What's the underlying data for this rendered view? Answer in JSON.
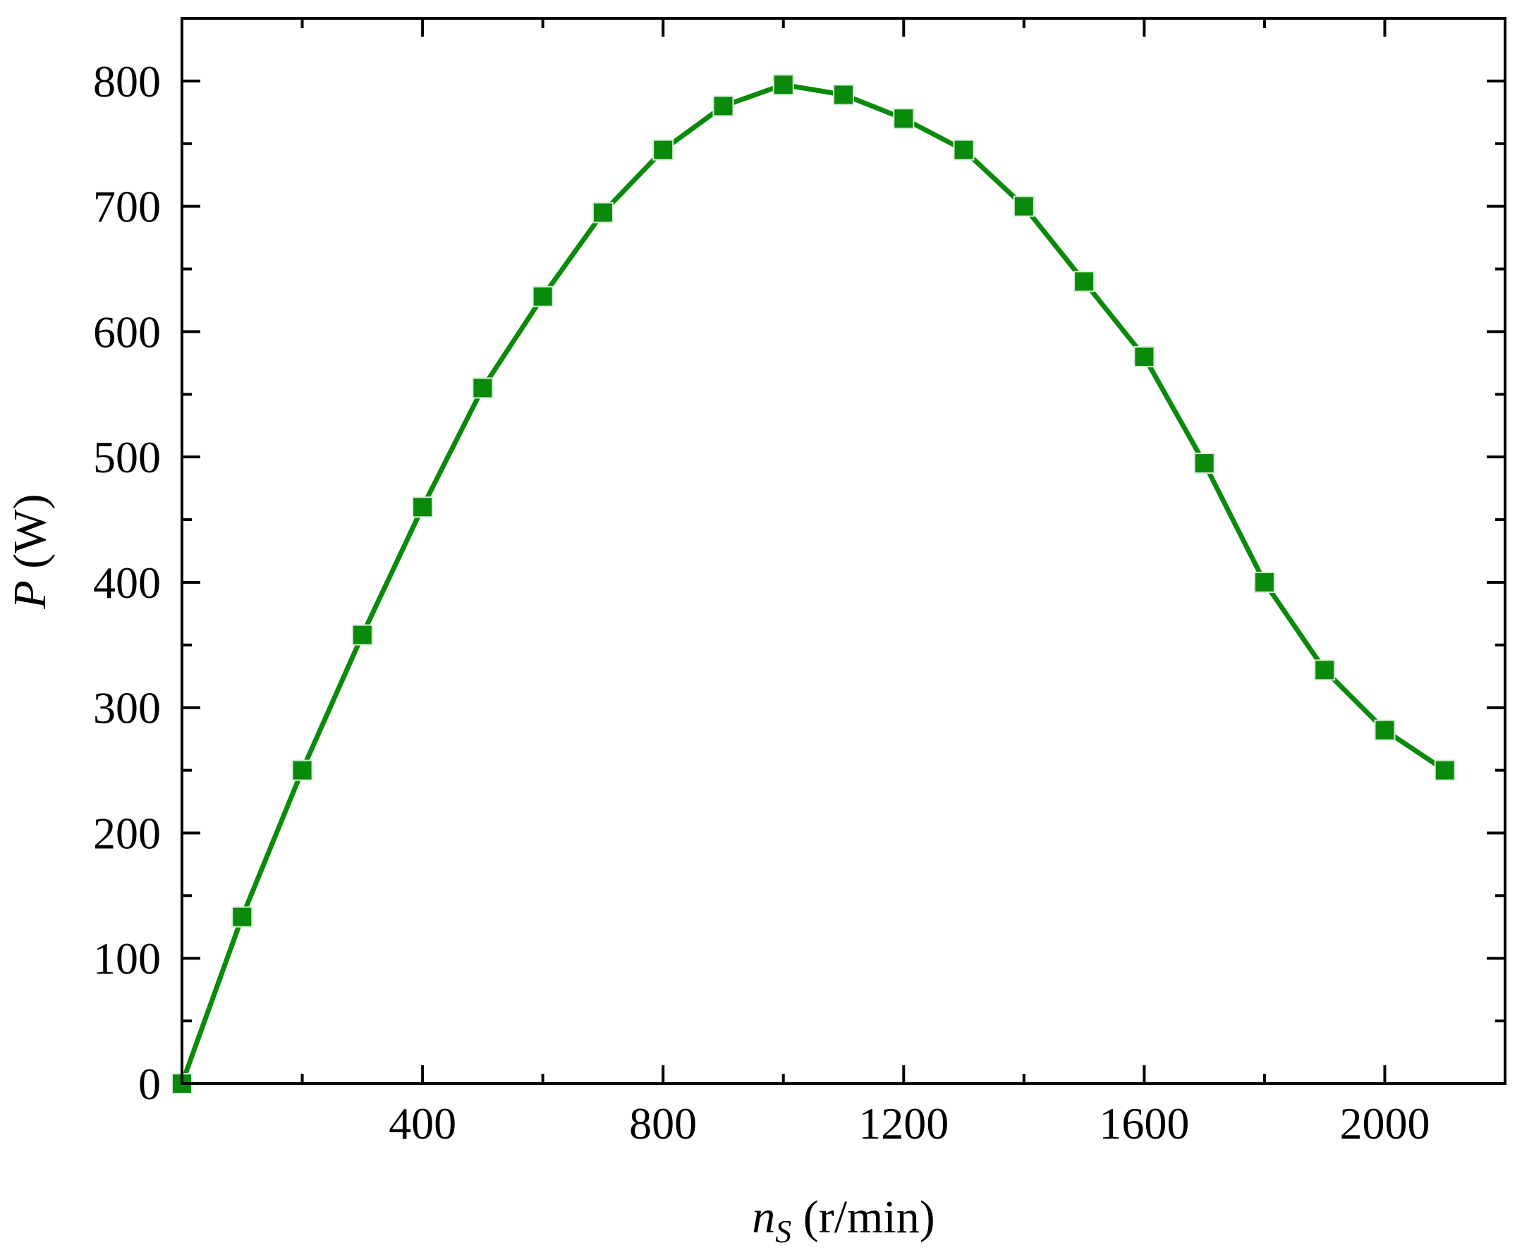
{
  "chart_data": {
    "type": "line",
    "xlabel_var": "n",
    "xlabel_sub": "S",
    "xlabel_unit": " (r/min)",
    "ylabel_var": "P",
    "ylabel_unit": " (W)",
    "xlim": [
      0,
      2200
    ],
    "ylim": [
      0,
      850
    ],
    "x_major_ticks": [
      400,
      800,
      1200,
      1600,
      2000
    ],
    "x_minor_ticks": [
      200,
      600,
      1000,
      1400,
      1800,
      2200
    ],
    "y_major_ticks": [
      0,
      100,
      200,
      300,
      400,
      500,
      600,
      700,
      800
    ],
    "y_minor_ticks": [
      50,
      150,
      250,
      350,
      450,
      550,
      650,
      750
    ],
    "x_tick_labels": [
      "400",
      "800",
      "1200",
      "1600",
      "2000"
    ],
    "y_tick_labels": [
      "0",
      "100",
      "200",
      "300",
      "400",
      "500",
      "600",
      "700",
      "800"
    ],
    "grid": false,
    "legend": "none",
    "marker": "square",
    "series_color": "#0a8a0a",
    "series": [
      {
        "x": [
          0,
          100,
          200,
          300,
          400,
          500,
          600,
          700,
          800,
          900,
          1000,
          1100,
          1200,
          1300,
          1400,
          1500,
          1600,
          1700,
          1800,
          1900,
          2000,
          2100
        ],
        "y": [
          0,
          133,
          250,
          358,
          460,
          555,
          628,
          695,
          745,
          780,
          797,
          789,
          770,
          745,
          700,
          640,
          580,
          495,
          400,
          330,
          282,
          250
        ]
      }
    ]
  }
}
